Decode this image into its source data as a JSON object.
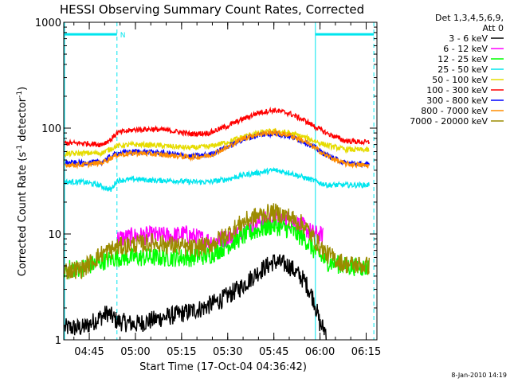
{
  "chart_data": {
    "type": "line",
    "title": "HESSI Observing Summary Count Rates, Corrected",
    "xlabel": "Start Time (17-Oct-04 04:36:42)",
    "ylabel_prefix": "Corrected Count Rate (s",
    "ylabel_exp": "-1",
    "ylabel_mid": " detector",
    "ylabel_exp2": "-1",
    "ylabel_suffix": ")",
    "y_scale": "log",
    "ylim": [
      1,
      1000
    ],
    "y_ticks": [
      {
        "value": 1,
        "label": "1"
      },
      {
        "value": 10,
        "label": "10"
      },
      {
        "value": 100,
        "label": "100"
      },
      {
        "value": 1000,
        "label": "1000"
      }
    ],
    "xlim_minutes": [
      276.7,
      378.5
    ],
    "x_ticks": [
      {
        "value": 285,
        "label": "04:45"
      },
      {
        "value": 300,
        "label": "05:00"
      },
      {
        "value": 315,
        "label": "05:15"
      },
      {
        "value": 330,
        "label": "05:30"
      },
      {
        "value": 345,
        "label": "05:45"
      },
      {
        "value": 360,
        "label": "06:00"
      },
      {
        "value": 375,
        "label": "06:15"
      }
    ],
    "legend_header": [
      "Det 1,3,4,5,6,9,",
      "Att 0"
    ],
    "footer": "8-Jan-2010 14:19",
    "night_bar_color": "#00e5ee",
    "night_marker_label": "N",
    "night_intervals": [
      [
        276.7,
        294.0
      ],
      [
        358.5,
        377.5
      ]
    ],
    "night_bar_level": 770,
    "series": [
      {
        "name": "3 - 6 keV",
        "color": "#000000",
        "points": [
          [
            277,
            1.3
          ],
          [
            283,
            1.3
          ],
          [
            291,
            1.8
          ],
          [
            294,
            1.5
          ],
          [
            300,
            1.4
          ],
          [
            308,
            1.6
          ],
          [
            316,
            1.8
          ],
          [
            322,
            2.0
          ],
          [
            328,
            2.4
          ],
          [
            334,
            3.1
          ],
          [
            340,
            4.4
          ],
          [
            345,
            5.5
          ],
          [
            350,
            5.0
          ],
          [
            355,
            3.6
          ],
          [
            358,
            2.4
          ],
          [
            360,
            1.4
          ],
          [
            362,
            1.2
          ]
        ]
      },
      {
        "name": "6 - 12 keV",
        "color": "#ff00ff",
        "points": [
          [
            294,
            9.0
          ],
          [
            300,
            9.5
          ],
          [
            306,
            9.7
          ],
          [
            312,
            9.5
          ],
          [
            316,
            10.0
          ],
          [
            320,
            9.2
          ],
          [
            325,
            8.5
          ],
          [
            330,
            9.2
          ],
          [
            335,
            11.0
          ],
          [
            340,
            13.0
          ],
          [
            345,
            14.0
          ],
          [
            350,
            13.5
          ],
          [
            355,
            11.5
          ],
          [
            358,
            10.0
          ],
          [
            361,
            9.5
          ]
        ]
      },
      {
        "name": "12 - 25 keV",
        "color": "#00ff00",
        "points": [
          [
            277,
            4.6
          ],
          [
            283,
            4.8
          ],
          [
            289,
            5.5
          ],
          [
            294,
            6.0
          ],
          [
            300,
            6.0
          ],
          [
            306,
            6.0
          ],
          [
            312,
            6.0
          ],
          [
            318,
            6.0
          ],
          [
            324,
            6.3
          ],
          [
            330,
            7.8
          ],
          [
            335,
            9.5
          ],
          [
            340,
            11.0
          ],
          [
            345,
            12.0
          ],
          [
            350,
            11.0
          ],
          [
            355,
            9.0
          ],
          [
            358,
            7.0
          ],
          [
            362,
            5.5
          ],
          [
            368,
            5.0
          ],
          [
            376,
            4.8
          ]
        ]
      },
      {
        "name": "25 - 50 keV",
        "color": "#00e5ee",
        "points": [
          [
            277,
            31
          ],
          [
            283,
            31
          ],
          [
            288,
            29
          ],
          [
            292,
            26
          ],
          [
            294,
            32
          ],
          [
            300,
            33
          ],
          [
            306,
            32
          ],
          [
            312,
            32
          ],
          [
            318,
            31
          ],
          [
            324,
            31
          ],
          [
            330,
            33
          ],
          [
            335,
            36
          ],
          [
            340,
            38
          ],
          [
            345,
            40
          ],
          [
            350,
            38
          ],
          [
            355,
            34
          ],
          [
            358,
            32
          ],
          [
            362,
            29
          ],
          [
            368,
            29
          ],
          [
            376,
            29
          ]
        ]
      },
      {
        "name": "50 - 100 keV",
        "color": "#e6dc00",
        "points": [
          [
            277,
            57
          ],
          [
            283,
            58
          ],
          [
            289,
            58
          ],
          [
            294,
            68
          ],
          [
            300,
            70
          ],
          [
            306,
            69
          ],
          [
            312,
            67
          ],
          [
            318,
            65
          ],
          [
            324,
            67
          ],
          [
            330,
            74
          ],
          [
            335,
            83
          ],
          [
            340,
            90
          ],
          [
            345,
            94
          ],
          [
            350,
            90
          ],
          [
            355,
            82
          ],
          [
            358,
            76
          ],
          [
            362,
            69
          ],
          [
            368,
            63
          ],
          [
            376,
            62
          ]
        ]
      },
      {
        "name": "100 - 300 keV",
        "color": "#ff0000",
        "points": [
          [
            277,
            72
          ],
          [
            283,
            72
          ],
          [
            289,
            70
          ],
          [
            292,
            78
          ],
          [
            294,
            90
          ],
          [
            300,
            97
          ],
          [
            306,
            98
          ],
          [
            312,
            94
          ],
          [
            318,
            88
          ],
          [
            324,
            90
          ],
          [
            330,
            105
          ],
          [
            335,
            122
          ],
          [
            340,
            140
          ],
          [
            345,
            148
          ],
          [
            350,
            138
          ],
          [
            355,
            118
          ],
          [
            358,
            105
          ],
          [
            362,
            90
          ],
          [
            368,
            76
          ],
          [
            376,
            73
          ]
        ]
      },
      {
        "name": "300 - 800 keV",
        "color": "#0000ff",
        "points": [
          [
            277,
            47
          ],
          [
            283,
            47
          ],
          [
            289,
            48
          ],
          [
            294,
            58
          ],
          [
            300,
            60
          ],
          [
            306,
            59
          ],
          [
            312,
            57
          ],
          [
            318,
            54
          ],
          [
            324,
            56
          ],
          [
            330,
            67
          ],
          [
            335,
            78
          ],
          [
            340,
            86
          ],
          [
            345,
            89
          ],
          [
            350,
            84
          ],
          [
            355,
            74
          ],
          [
            358,
            66
          ],
          [
            362,
            56
          ],
          [
            368,
            47
          ],
          [
            376,
            45
          ]
        ]
      },
      {
        "name": "800 - 7000 keV",
        "color": "#ff8c00",
        "points": [
          [
            277,
            45
          ],
          [
            283,
            45
          ],
          [
            289,
            47
          ],
          [
            294,
            56
          ],
          [
            300,
            58
          ],
          [
            306,
            57
          ],
          [
            312,
            55
          ],
          [
            318,
            53
          ],
          [
            324,
            55
          ],
          [
            330,
            66
          ],
          [
            335,
            80
          ],
          [
            340,
            88
          ],
          [
            345,
            91
          ],
          [
            350,
            86
          ],
          [
            355,
            75
          ],
          [
            358,
            66
          ],
          [
            362,
            55
          ],
          [
            368,
            46
          ],
          [
            376,
            44
          ]
        ]
      },
      {
        "name": "7000 - 20000 keV",
        "color": "#9b8b00",
        "points": [
          [
            277,
            4.5
          ],
          [
            283,
            4.7
          ],
          [
            289,
            6.5
          ],
          [
            294,
            7.5
          ],
          [
            300,
            8.0
          ],
          [
            306,
            8.3
          ],
          [
            312,
            7.8
          ],
          [
            318,
            7.3
          ],
          [
            324,
            7.8
          ],
          [
            330,
            10.0
          ],
          [
            335,
            13.0
          ],
          [
            340,
            15.0
          ],
          [
            345,
            16.0
          ],
          [
            350,
            14.5
          ],
          [
            355,
            12.0
          ],
          [
            358,
            9.0
          ],
          [
            362,
            6.5
          ],
          [
            368,
            5.2
          ],
          [
            376,
            5.0
          ]
        ]
      }
    ]
  }
}
